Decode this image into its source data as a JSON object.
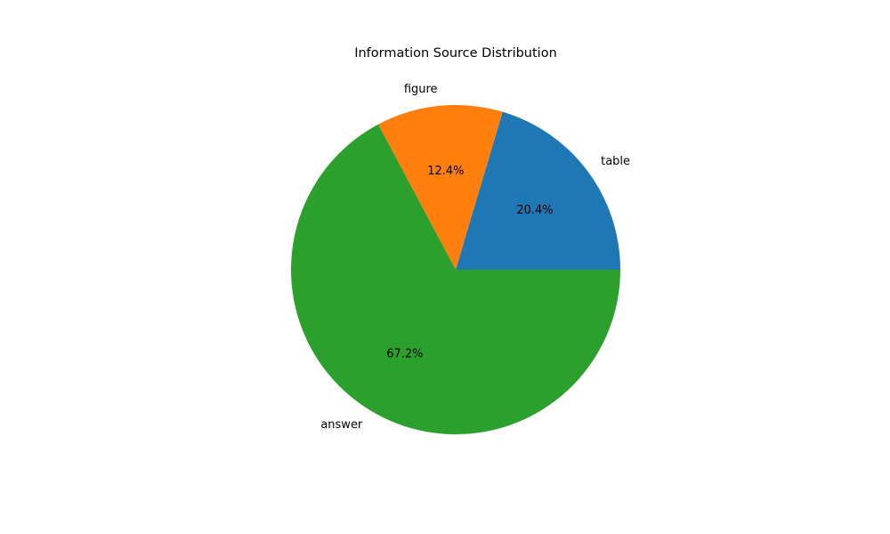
{
  "chart_data": {
    "type": "pie",
    "title": "Information Source Distribution",
    "labels": [
      "table",
      "figure",
      "answer"
    ],
    "values": [
      20.4,
      12.4,
      67.2
    ],
    "value_labels": [
      "20.4%",
      "12.4%",
      "67.2%"
    ],
    "colors": [
      "#1f77b4",
      "#ff7f0e",
      "#2ca02c"
    ],
    "start_angle_deg": 0,
    "direction": "counterclockwise",
    "legend": "none"
  }
}
